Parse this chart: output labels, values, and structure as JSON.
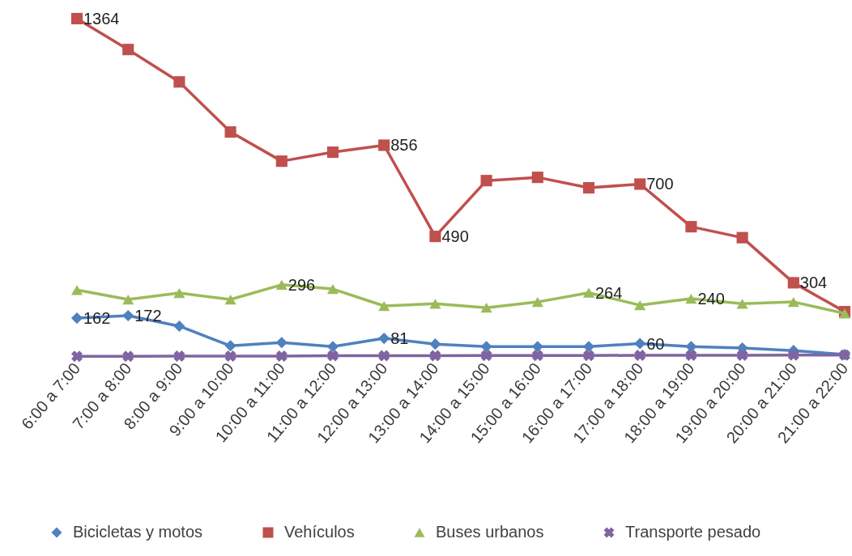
{
  "chart_data": {
    "type": "line",
    "categories": [
      "6:00 a 7:00",
      "7:00 a 8:00",
      "8:00 a 9:00",
      "9:00 a 10:00",
      "10:00 a 11:00",
      "11:00 a 12:00",
      "12:00 a 13:00",
      "13:00 a 14:00",
      "14:00 a 15:00",
      "15:00 a 16:00",
      "16:00 a 17:00",
      "17:00 a 18:00",
      "18:00 a 19:00",
      "19:00 a 20:00",
      "20:00 a 21:00",
      "21:00 a 22:00"
    ],
    "series": [
      {
        "name": "Bicicletas y motos",
        "color": "#4f81bd",
        "marker": "diamond",
        "values": [
          162,
          172,
          130,
          51,
          64,
          48,
          81,
          58,
          48,
          48,
          48,
          60,
          48,
          42,
          32,
          16
        ],
        "value_labels": [
          "162",
          "172",
          null,
          null,
          null,
          null,
          "81",
          null,
          null,
          null,
          null,
          "60",
          null,
          null,
          null,
          null
        ]
      },
      {
        "name": "Vehículos",
        "color": "#c0504d",
        "marker": "square",
        "values": [
          1364,
          1240,
          1110,
          909,
          792,
          828,
          856,
          490,
          714,
          727,
          685,
          700,
          529,
          485,
          304,
          188
        ],
        "value_labels": [
          "1364",
          null,
          null,
          null,
          null,
          null,
          "856",
          "490",
          null,
          null,
          null,
          "700",
          null,
          null,
          "304",
          null
        ]
      },
      {
        "name": "Buses urbanos",
        "color": "#9bbb59",
        "marker": "triangle",
        "values": [
          275,
          237,
          263,
          237,
          296,
          279,
          211,
          220,
          204,
          227,
          264,
          214,
          240,
          220,
          227,
          181
        ],
        "value_labels": [
          null,
          null,
          null,
          null,
          "296",
          null,
          null,
          null,
          null,
          null,
          "264",
          null,
          "240",
          null,
          null,
          null
        ]
      },
      {
        "name": "Transporte pesado",
        "color": "#8064a2",
        "marker": "cross",
        "values": [
          9,
          9,
          10,
          10,
          10,
          11,
          11,
          11,
          12,
          12,
          12,
          13,
          13,
          13,
          14,
          14
        ]
      }
    ],
    "tick_labels": "x",
    "legend": "bottom"
  }
}
